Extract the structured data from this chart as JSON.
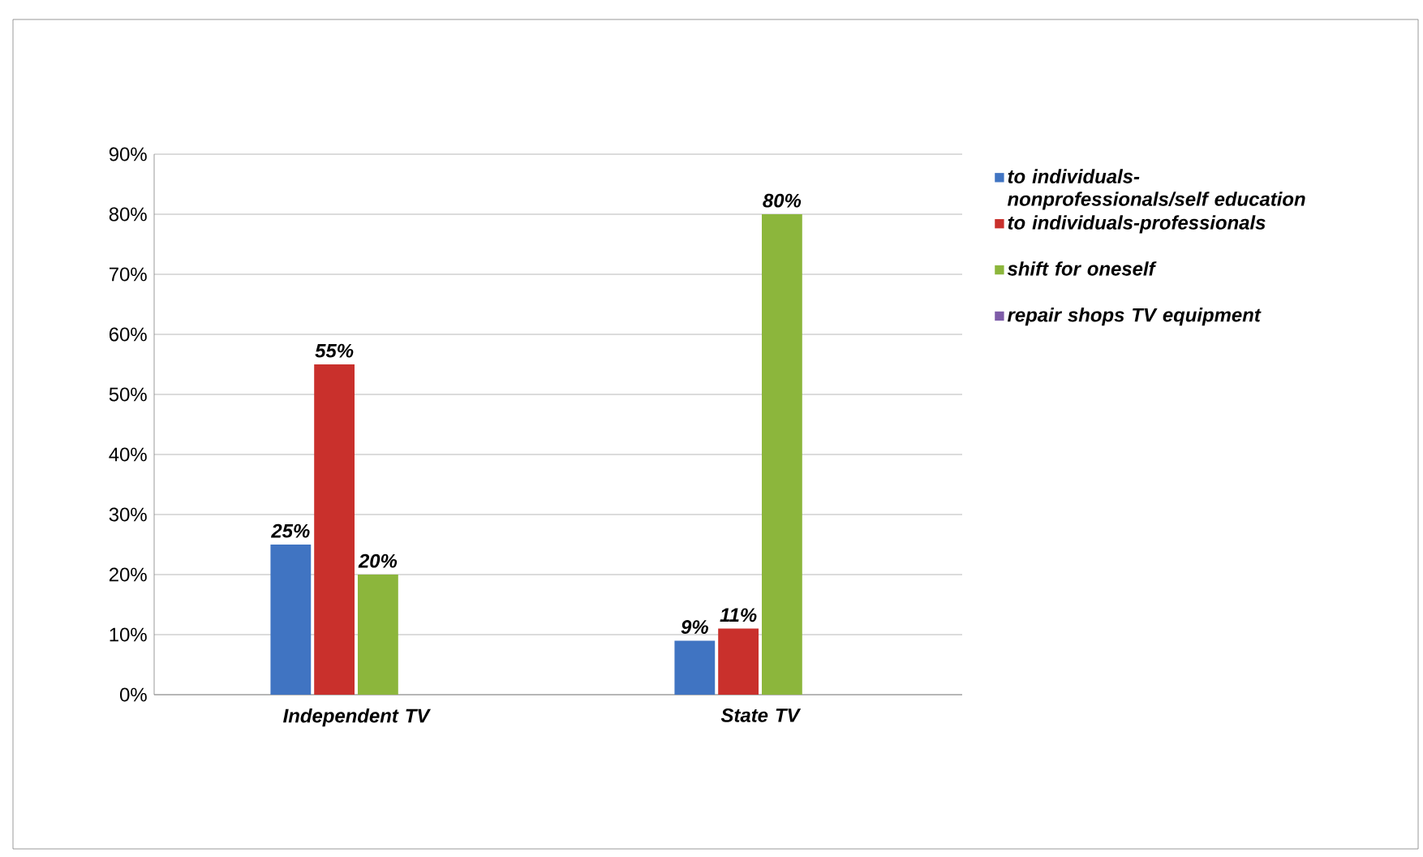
{
  "chart_data": {
    "type": "bar",
    "categories": [
      "Independent TV",
      "State TV"
    ],
    "series": [
      {
        "name": "to individuals-nonprofessionals/self education",
        "color": "#4074c2",
        "values": [
          25,
          9
        ],
        "value_labels": [
          "25%",
          "9%"
        ]
      },
      {
        "name": "to individuals-professionals",
        "color": "#c9302c",
        "values": [
          55,
          11
        ],
        "value_labels": [
          "55%",
          "11%"
        ]
      },
      {
        "name": "shift for oneself",
        "color": "#8cb63c",
        "values": [
          20,
          80
        ],
        "value_labels": [
          "20%",
          "80%"
        ]
      },
      {
        "name": "repair shops TV equipment",
        "color": "#7e5ca8",
        "values": [
          0,
          0
        ],
        "value_labels": [
          null,
          null
        ]
      }
    ],
    "ylim": [
      0,
      90
    ],
    "yticks": [
      {
        "value": 0,
        "label": "0%"
      },
      {
        "value": 10,
        "label": "10%"
      },
      {
        "value": 20,
        "label": "20%"
      },
      {
        "value": 30,
        "label": "30%"
      },
      {
        "value": 40,
        "label": "40%"
      },
      {
        "value": 50,
        "label": "50%"
      },
      {
        "value": 60,
        "label": "60%"
      },
      {
        "value": 70,
        "label": "70%"
      },
      {
        "value": 80,
        "label": "80%"
      },
      {
        "value": 90,
        "label": "90%"
      }
    ],
    "grid": "y",
    "legend": "right"
  }
}
